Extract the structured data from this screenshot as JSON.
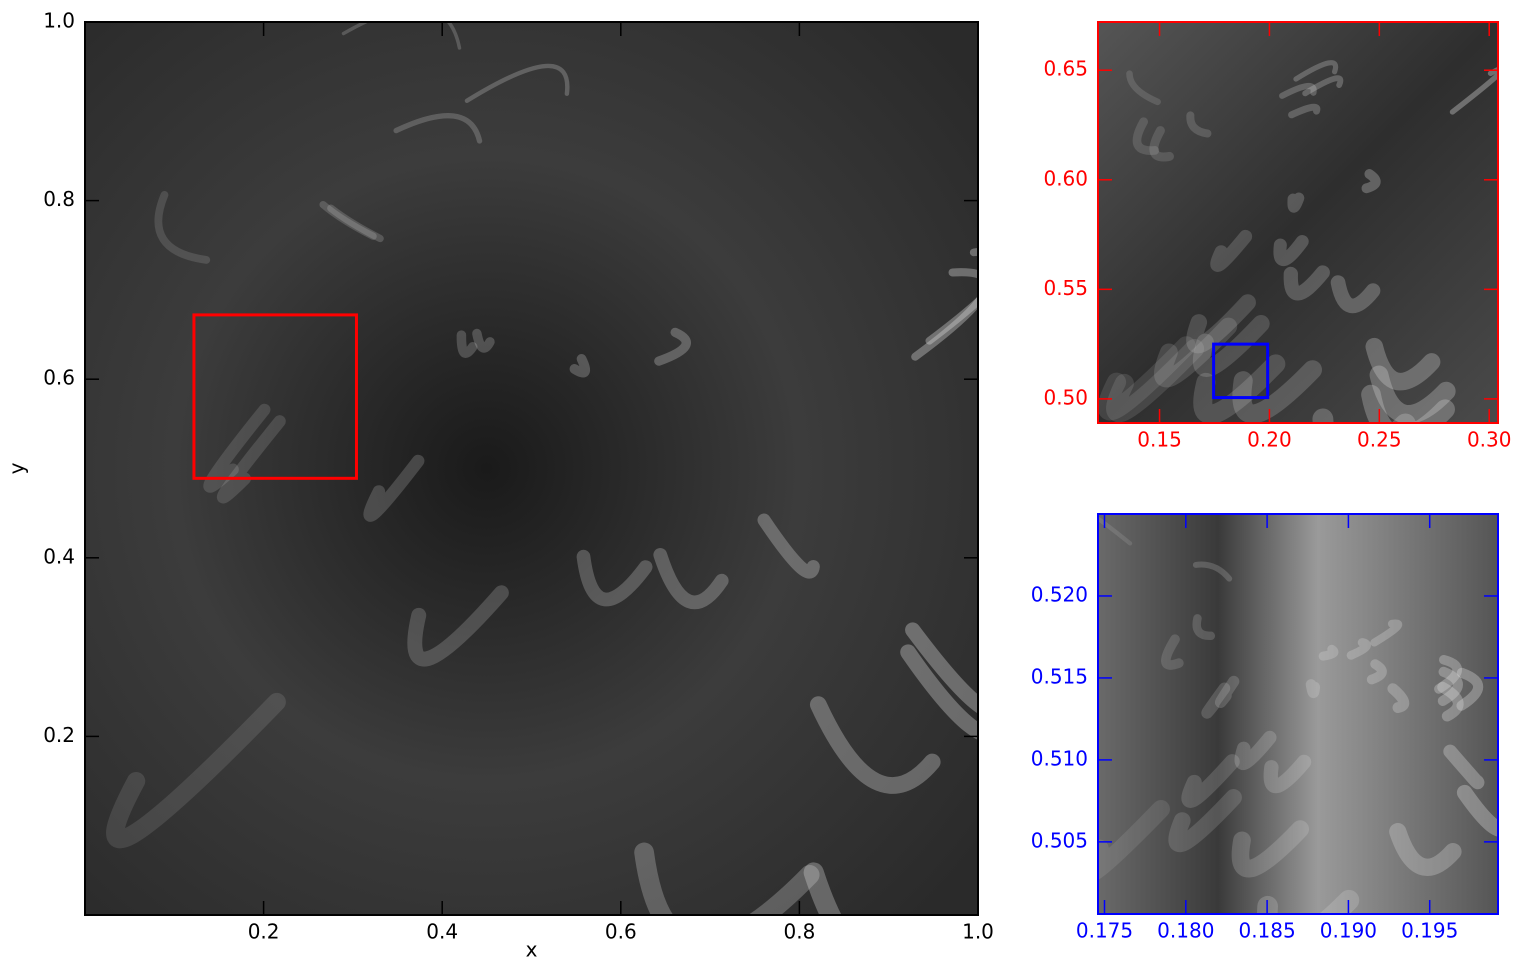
{
  "chart_data": [
    {
      "type": "image",
      "xlabel": "x",
      "ylabel": "y",
      "color": "#000000",
      "xlim": [
        0,
        1
      ],
      "ylim": [
        0,
        1
      ],
      "xticks": [
        0.2,
        0.4,
        0.6,
        0.8,
        {
          "value": 1,
          "label": "1.0"
        }
      ],
      "yticks": [
        0.2,
        0.4,
        0.6,
        0.8,
        {
          "value": 1,
          "label": "1.0"
        }
      ]
    },
    {
      "type": "image",
      "color": "#ff0000",
      "xlim": [
        0.122,
        0.304
      ],
      "ylim": [
        0.489,
        0.672
      ],
      "xticks": [
        0.15,
        {
          "value": 0.2,
          "label": "0.20"
        },
        0.25,
        {
          "value": 0.3,
          "label": "0.30"
        }
      ],
      "yticks": [
        {
          "value": 0.5,
          "label": "0.50"
        },
        0.55,
        {
          "value": 0.6,
          "label": "0.60"
        },
        0.65
      ]
    },
    {
      "type": "image",
      "color": "#0000ff",
      "xlim": [
        0.1746,
        0.1992
      ],
      "ylim": [
        0.5006,
        0.525
      ],
      "xticks": [
        0.175,
        {
          "value": 0.18,
          "label": "0.180"
        },
        0.185,
        {
          "value": 0.19,
          "label": "0.190"
        },
        0.195
      ],
      "yticks": [
        0.505,
        {
          "value": 0.51,
          "label": "0.510"
        },
        0.515,
        {
          "value": 0.52,
          "label": "0.520"
        }
      ]
    }
  ]
}
